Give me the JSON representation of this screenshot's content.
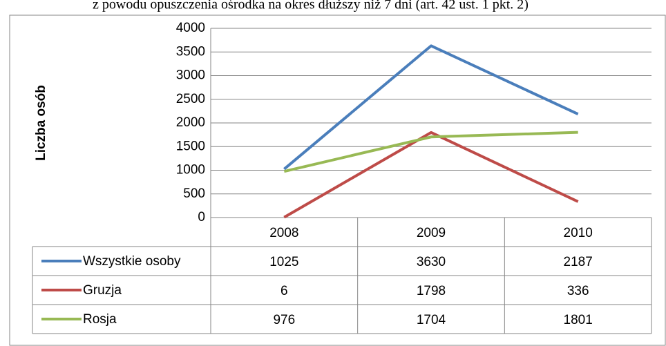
{
  "chart_data": {
    "type": "line",
    "title": "z powodu opuszczenia ośrodka na okres dłuższy niż 7 dni (art. 42 ust. 1 pkt. 2)",
    "y_label": "Liczba osób",
    "categories": [
      "2008",
      "2009",
      "2010"
    ],
    "series": [
      {
        "name": "Wszystkie osoby",
        "color": "#4a7ebb",
        "values": [
          1025,
          3630,
          2187
        ]
      },
      {
        "name": "Gruzja",
        "color": "#be4b48",
        "values": [
          6,
          1798,
          336
        ]
      },
      {
        "name": "Rosja",
        "color": "#98b954",
        "values": [
          976,
          1704,
          1801
        ]
      }
    ],
    "ylim": [
      0,
      4000
    ],
    "yticks": [
      0,
      500,
      1000,
      1500,
      2000,
      2500,
      3000,
      3500,
      4000
    ],
    "grid": true,
    "legend": "table"
  }
}
